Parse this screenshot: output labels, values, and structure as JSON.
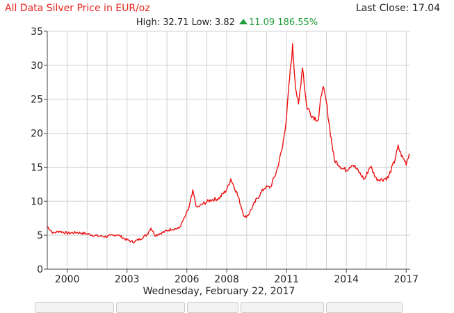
{
  "header": {
    "title": "All Data Silver Price in EUR/oz",
    "last_close": "Last Close: 17.04",
    "high_label": "High: 32.71",
    "low_label": "Low: 3.82",
    "change_label": "11.09 186.55%"
  },
  "date_caption": "Wednesday, February 22, 2017",
  "colors": {
    "line": "#ee1111",
    "title": "#e8231c",
    "up": "#1f9d3a",
    "grid": "#d0d0d0"
  },
  "chart_data": {
    "type": "line",
    "title": "All Data Silver Price in EUR/oz",
    "xlim": [
      1999.0,
      2017.2
    ],
    "ylim": [
      0,
      35
    ],
    "grid": true,
    "x_tick_labels": [
      "2000",
      "2003",
      "2006",
      "2008",
      "2011",
      "2014",
      "2017"
    ],
    "y_tick_labels": [
      "0",
      "5",
      "10",
      "15",
      "20",
      "25",
      "30",
      "35"
    ],
    "series": [
      {
        "x": [
          1999.0,
          1999.3,
          1999.6,
          2000.0,
          2000.5,
          2001.0,
          2001.5,
          2002.0,
          2002.5,
          2003.0,
          2003.3,
          2003.7,
          2004.0,
          2004.2,
          2004.4,
          2004.8,
          2005.2,
          2005.6,
          2005.9,
          2006.1,
          2006.3,
          2006.5,
          2006.8,
          2007.2,
          2007.6,
          2008.0,
          2008.2,
          2008.5,
          2008.9,
          2009.1,
          2009.5,
          2009.9,
          2010.2,
          2010.5,
          2010.8,
          2011.0,
          2011.15,
          2011.3,
          2011.45,
          2011.6,
          2011.8,
          2012.0,
          2012.3,
          2012.6,
          2012.8,
          2013.0,
          2013.2,
          2013.4,
          2013.6,
          2013.8,
          2014.0,
          2014.3,
          2014.6,
          2014.9,
          2015.2,
          2015.5,
          2015.8,
          2016.1,
          2016.4,
          2016.6,
          2016.8,
          2017.0,
          2017.15
        ],
        "y": [
          6.3,
          5.3,
          5.6,
          5.3,
          5.4,
          5.2,
          4.9,
          4.8,
          5.1,
          4.3,
          4.0,
          4.5,
          5.1,
          6.1,
          5.0,
          5.4,
          5.9,
          6.0,
          7.6,
          9.0,
          11.4,
          9.0,
          9.6,
          10.2,
          10.4,
          11.7,
          13.3,
          11.3,
          7.6,
          8.1,
          10.3,
          12.0,
          12.1,
          14.4,
          18.0,
          22.5,
          28.0,
          32.7,
          27.0,
          24.0,
          30.0,
          24.0,
          22.5,
          22.0,
          27.0,
          24.5,
          20.0,
          16.0,
          15.5,
          14.8,
          14.6,
          15.5,
          14.4,
          13.2,
          15.2,
          13.3,
          13.2,
          13.5,
          15.8,
          18.0,
          16.5,
          15.6,
          17.0
        ]
      }
    ]
  }
}
